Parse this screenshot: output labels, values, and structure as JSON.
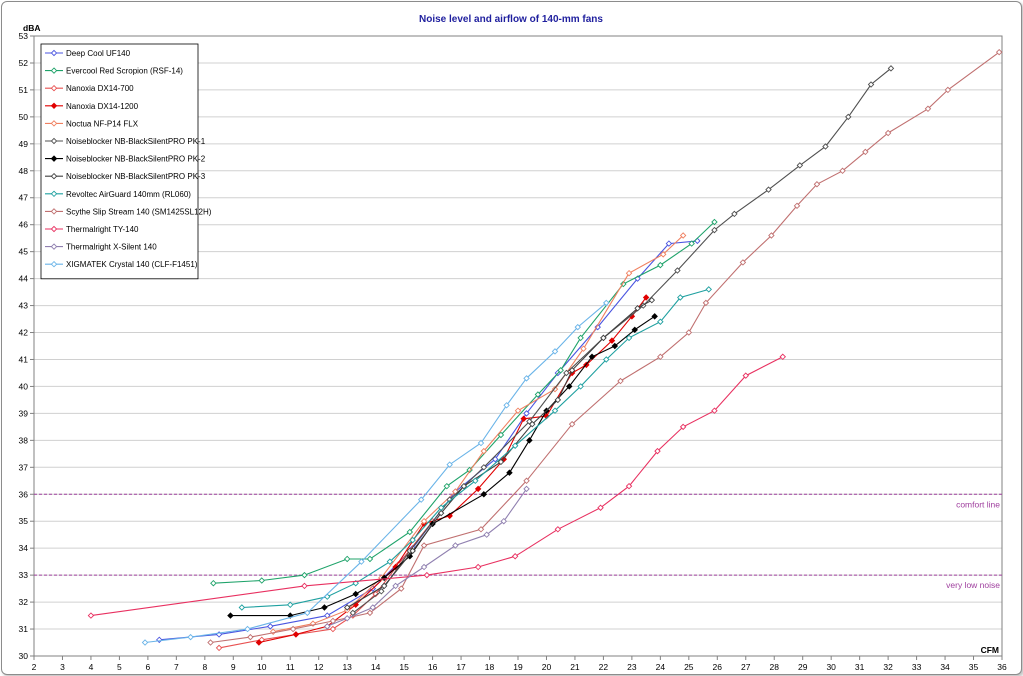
{
  "chart_data": {
    "type": "line",
    "title": "Noise level and airflow of 140-mm  fans",
    "xlabel": "CFM",
    "ylabel": "dBA",
    "xlim": [
      2,
      36
    ],
    "ylim": [
      30,
      53
    ],
    "x_ticks": [
      2,
      3,
      4,
      5,
      6,
      7,
      8,
      9,
      10,
      11,
      12,
      13,
      14,
      15,
      16,
      17,
      18,
      19,
      20,
      21,
      22,
      23,
      24,
      25,
      26,
      27,
      28,
      29,
      30,
      31,
      32,
      33,
      34,
      35,
      36
    ],
    "y_ticks": [
      30,
      31,
      32,
      33,
      34,
      35,
      36,
      37,
      38,
      39,
      40,
      41,
      42,
      43,
      44,
      45,
      46,
      47,
      48,
      49,
      50,
      51,
      52,
      53
    ],
    "grid": "horizontal",
    "legend_position": "top-left",
    "reference_lines": [
      {
        "y": 36,
        "label": "comfort  line",
        "color": "#a0409f"
      },
      {
        "y": 33,
        "label": "very  low  noise",
        "color": "#a0409f"
      }
    ],
    "series": [
      {
        "name": "Deep Cool UF140",
        "color": "#4a55e0",
        "marker": "open-diamond",
        "points": [
          [
            6.4,
            30.6
          ],
          [
            8.5,
            30.8
          ],
          [
            10.3,
            31.1
          ],
          [
            12.3,
            31.5
          ],
          [
            13.9,
            32.5
          ],
          [
            15.3,
            34.0
          ],
          [
            16.8,
            36.1
          ],
          [
            18.2,
            37.3
          ],
          [
            19.3,
            39.0
          ],
          [
            20.4,
            40.5
          ],
          [
            21.8,
            42.2
          ],
          [
            23.2,
            44.0
          ],
          [
            24.3,
            45.3
          ],
          [
            25.3,
            45.4
          ]
        ]
      },
      {
        "name": "Evercool Red Scropion (RSF-14)",
        "color": "#1fa36a",
        "marker": "open-diamond",
        "points": [
          [
            8.3,
            32.7
          ],
          [
            10.0,
            32.8
          ],
          [
            11.5,
            33.0
          ],
          [
            13.0,
            33.6
          ],
          [
            13.8,
            33.6
          ],
          [
            15.2,
            34.6
          ],
          [
            16.5,
            36.3
          ],
          [
            17.3,
            36.9
          ],
          [
            18.4,
            38.2
          ],
          [
            19.7,
            39.7
          ],
          [
            20.5,
            40.6
          ],
          [
            21.2,
            41.8
          ],
          [
            22.7,
            43.8
          ],
          [
            24.0,
            44.5
          ],
          [
            25.1,
            45.3
          ],
          [
            25.9,
            46.1
          ]
        ]
      },
      {
        "name": "Nanoxia DX14-700",
        "color": "#e85050",
        "marker": "open-diamond",
        "points": [
          [
            8.5,
            30.3
          ],
          [
            10.0,
            30.6
          ],
          [
            11.2,
            30.8
          ],
          [
            12.5,
            31.0
          ],
          [
            13.2,
            31.5
          ],
          [
            14.0,
            32.3
          ],
          [
            14.8,
            33.4
          ],
          [
            16.0,
            35.0
          ]
        ]
      },
      {
        "name": "Nanoxia DX14-1200",
        "color": "#e00000",
        "marker": "filled-diamond",
        "points": [
          [
            9.9,
            30.5
          ],
          [
            11.2,
            30.8
          ],
          [
            12.3,
            31.1
          ],
          [
            13.3,
            31.9
          ],
          [
            14.7,
            33.3
          ],
          [
            15.7,
            34.9
          ],
          [
            16.6,
            35.2
          ],
          [
            17.6,
            36.2
          ],
          [
            18.5,
            37.3
          ],
          [
            19.2,
            38.8
          ],
          [
            20.0,
            38.9
          ],
          [
            20.9,
            40.5
          ],
          [
            21.4,
            40.8
          ],
          [
            22.3,
            41.7
          ],
          [
            23.0,
            42.6
          ],
          [
            23.5,
            43.3
          ]
        ]
      },
      {
        "name": "Noctua NF-P14 FLX",
        "color": "#f08060",
        "marker": "open-diamond",
        "points": [
          [
            10.4,
            30.9
          ],
          [
            11.8,
            31.2
          ],
          [
            13.0,
            31.7
          ],
          [
            14.2,
            32.9
          ],
          [
            15.7,
            35.0
          ],
          [
            16.8,
            36.1
          ],
          [
            17.8,
            37.6
          ],
          [
            19.0,
            39.1
          ],
          [
            20.3,
            39.9
          ],
          [
            21.3,
            41.4
          ],
          [
            22.9,
            44.2
          ],
          [
            24.1,
            44.9
          ],
          [
            24.8,
            45.6
          ]
        ]
      },
      {
        "name": "Noiseblocker NB-BlackSilentPRO PK-1",
        "color": "#505050",
        "marker": "open-diamond",
        "points": [
          [
            13.2,
            31.6
          ],
          [
            14.2,
            32.4
          ],
          [
            15.2,
            33.9
          ],
          [
            16.6,
            35.8
          ],
          [
            17.8,
            37.0
          ],
          [
            19.4,
            38.7
          ],
          [
            20.7,
            40.5
          ],
          [
            22.0,
            41.8
          ],
          [
            23.4,
            43.0
          ],
          [
            24.6,
            44.3
          ],
          [
            25.9,
            45.8
          ],
          [
            26.6,
            46.4
          ],
          [
            27.8,
            47.3
          ],
          [
            28.9,
            48.2
          ],
          [
            29.8,
            48.9
          ],
          [
            30.6,
            50.0
          ],
          [
            31.4,
            51.2
          ],
          [
            32.1,
            51.8
          ]
        ]
      },
      {
        "name": "Noiseblocker NB-BlackSilentPRO PK-2",
        "color": "#000000",
        "marker": "filled-diamond",
        "points": [
          [
            8.9,
            31.5
          ],
          [
            11.0,
            31.5
          ],
          [
            12.2,
            31.8
          ],
          [
            13.3,
            32.3
          ],
          [
            14.3,
            32.9
          ],
          [
            15.2,
            33.7
          ],
          [
            16.0,
            34.9
          ],
          [
            17.8,
            36.0
          ],
          [
            18.7,
            36.8
          ],
          [
            19.4,
            38.0
          ],
          [
            20.0,
            39.1
          ],
          [
            20.8,
            40.0
          ],
          [
            21.6,
            41.1
          ],
          [
            22.4,
            41.5
          ],
          [
            23.1,
            42.1
          ],
          [
            23.8,
            42.6
          ]
        ]
      },
      {
        "name": "Noiseblocker NB-BlackSilentPRO PK-3",
        "color": "#404040",
        "marker": "open-diamond",
        "points": [
          [
            13.0,
            31.8
          ],
          [
            14.3,
            32.6
          ],
          [
            15.3,
            33.9
          ],
          [
            16.3,
            35.3
          ],
          [
            17.1,
            36.3
          ],
          [
            18.4,
            37.2
          ],
          [
            19.5,
            38.6
          ],
          [
            20.4,
            39.5
          ],
          [
            20.9,
            40.6
          ],
          [
            22.0,
            41.8
          ],
          [
            23.2,
            42.9
          ],
          [
            23.7,
            43.2
          ]
        ]
      },
      {
        "name": "Revoltec AirGuard 140mm (RL060)",
        "color": "#1fa0a0",
        "marker": "open-diamond",
        "points": [
          [
            9.3,
            31.8
          ],
          [
            11.0,
            31.9
          ],
          [
            12.3,
            32.2
          ],
          [
            13.3,
            32.7
          ],
          [
            14.5,
            33.5
          ],
          [
            15.3,
            34.3
          ],
          [
            16.3,
            35.5
          ],
          [
            17.5,
            36.5
          ],
          [
            18.9,
            37.8
          ],
          [
            20.3,
            39.1
          ],
          [
            21.2,
            40.0
          ],
          [
            22.1,
            41.0
          ],
          [
            22.9,
            41.8
          ],
          [
            24.0,
            42.4
          ],
          [
            24.7,
            43.3
          ],
          [
            25.7,
            43.6
          ]
        ]
      },
      {
        "name": "Scythe Slip Stream 140 (SM1425SL12H)",
        "color": "#c07070",
        "marker": "open-diamond",
        "points": [
          [
            8.2,
            30.5
          ],
          [
            9.6,
            30.7
          ],
          [
            11.1,
            31.0
          ],
          [
            12.5,
            31.3
          ],
          [
            13.8,
            31.6
          ],
          [
            14.9,
            32.5
          ],
          [
            15.7,
            34.1
          ],
          [
            17.7,
            34.7
          ],
          [
            19.3,
            36.5
          ],
          [
            20.9,
            38.6
          ],
          [
            22.6,
            40.2
          ],
          [
            24.0,
            41.1
          ],
          [
            25.0,
            42.0
          ],
          [
            25.6,
            43.1
          ],
          [
            26.9,
            44.6
          ],
          [
            27.9,
            45.6
          ],
          [
            28.8,
            46.7
          ],
          [
            29.5,
            47.5
          ],
          [
            30.4,
            48.0
          ],
          [
            31.2,
            48.7
          ],
          [
            32.0,
            49.4
          ],
          [
            33.4,
            50.3
          ],
          [
            34.1,
            51.0
          ],
          [
            35.9,
            52.4
          ]
        ]
      },
      {
        "name": "Thermalright TY-140",
        "color": "#e83060",
        "marker": "open-diamond",
        "points": [
          [
            4.0,
            31.5
          ],
          [
            11.5,
            32.6
          ],
          [
            15.8,
            33.0
          ],
          [
            17.6,
            33.3
          ],
          [
            18.9,
            33.7
          ],
          [
            20.4,
            34.7
          ],
          [
            21.9,
            35.5
          ],
          [
            22.9,
            36.3
          ],
          [
            23.9,
            37.6
          ],
          [
            24.8,
            38.5
          ],
          [
            25.9,
            39.1
          ],
          [
            27.0,
            40.4
          ],
          [
            28.3,
            41.1
          ]
        ]
      },
      {
        "name": "Thermalright X-Silent 140",
        "color": "#9080b0",
        "marker": "open-diamond",
        "points": [
          [
            12.3,
            31.1
          ],
          [
            13.0,
            31.4
          ],
          [
            13.9,
            31.8
          ],
          [
            14.7,
            32.6
          ],
          [
            15.7,
            33.3
          ],
          [
            16.8,
            34.1
          ],
          [
            17.9,
            34.5
          ],
          [
            18.5,
            35.0
          ],
          [
            19.3,
            36.2
          ]
        ]
      },
      {
        "name": "XIGMATEK Crystal 140 (CLF-F1451)",
        "color": "#6ab4e8",
        "marker": "open-diamond",
        "points": [
          [
            5.9,
            30.5
          ],
          [
            7.5,
            30.7
          ],
          [
            9.5,
            31.0
          ],
          [
            11.6,
            31.6
          ],
          [
            13.5,
            33.5
          ],
          [
            15.6,
            35.8
          ],
          [
            16.6,
            37.1
          ],
          [
            17.7,
            37.9
          ],
          [
            18.6,
            39.3
          ],
          [
            19.3,
            40.3
          ],
          [
            20.3,
            41.3
          ],
          [
            21.1,
            42.2
          ],
          [
            22.1,
            43.1
          ]
        ]
      }
    ]
  }
}
